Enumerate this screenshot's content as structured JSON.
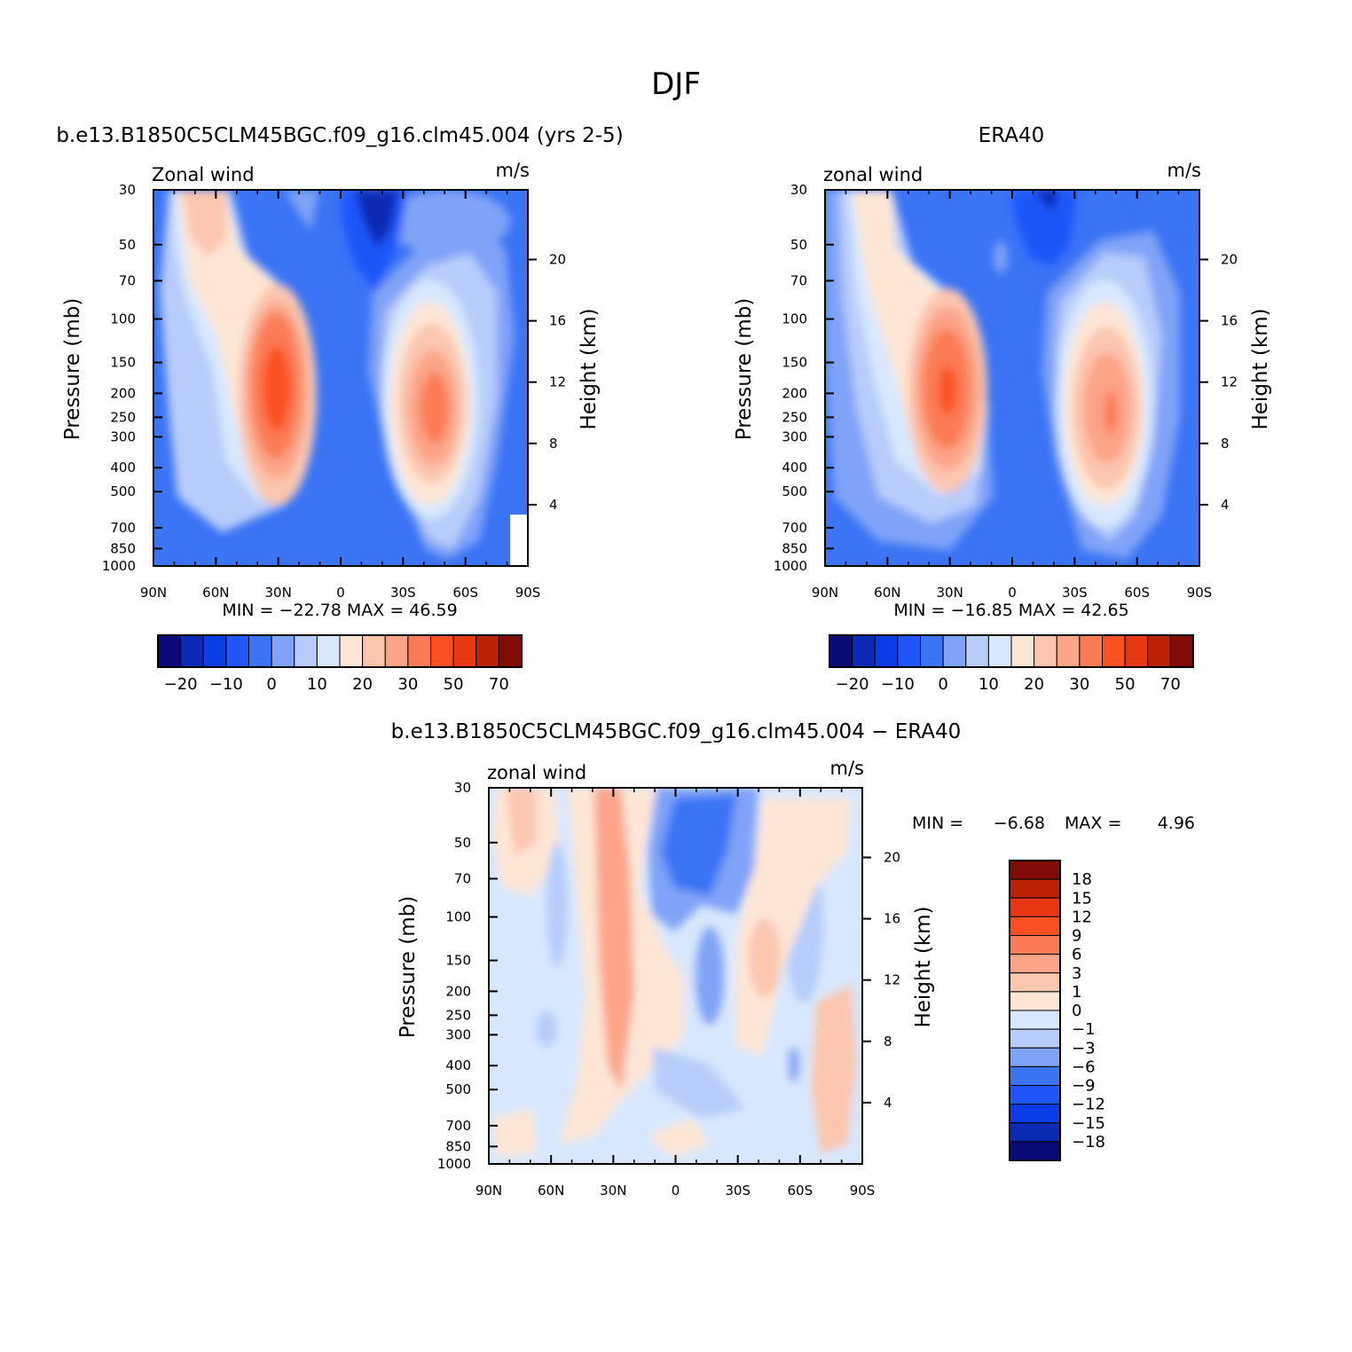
{
  "page": {
    "title": "DJF"
  },
  "chart_data": [
    {
      "type": "heatmap",
      "title": "b.e13.B1850C5CLM45BGC.f09_g16.clm45.004 (yrs 2-5)",
      "left_string": "Zonal wind",
      "right_string": "m/s",
      "ylabel": "Pressure (mb)",
      "ylabel_right": "Height (km)",
      "x_ticks": [
        "90N",
        "60N",
        "30N",
        "0",
        "30S",
        "60S",
        "90S"
      ],
      "y_ticks": [
        "30",
        "50",
        "70",
        "100",
        "150",
        "200",
        "250",
        "300",
        "400",
        "500",
        "700",
        "850",
        "1000"
      ],
      "y_ticks_right": [
        "20",
        "16",
        "12",
        "8",
        "4"
      ],
      "stats": "MIN =  −22.78   MAX =    46.59",
      "colorbar_labels": [
        "−20",
        "−10",
        "0",
        "10",
        "20",
        "30",
        "50",
        "70"
      ]
    },
    {
      "type": "heatmap",
      "title": "ERA40",
      "left_string": "zonal wind",
      "right_string": "m/s",
      "ylabel": "Pressure (mb)",
      "ylabel_right": "Height (km)",
      "x_ticks": [
        "90N",
        "60N",
        "30N",
        "0",
        "30S",
        "60S",
        "90S"
      ],
      "y_ticks": [
        "30",
        "50",
        "70",
        "100",
        "150",
        "200",
        "250",
        "300",
        "400",
        "500",
        "700",
        "850",
        "1000"
      ],
      "y_ticks_right": [
        "20",
        "16",
        "12",
        "8",
        "4"
      ],
      "stats": "MIN =  −16.85   MAX =    42.65",
      "colorbar_labels": [
        "−20",
        "−10",
        "0",
        "10",
        "20",
        "30",
        "50",
        "70"
      ]
    },
    {
      "type": "heatmap",
      "title": "b.e13.B1850C5CLM45BGC.f09_g16.clm45.004 − ERA40",
      "left_string": "zonal wind",
      "right_string": "m/s",
      "ylabel": "Pressure (mb)",
      "ylabel_right": "Height (km)",
      "x_ticks": [
        "90N",
        "60N",
        "30N",
        "0",
        "30S",
        "60S",
        "90S"
      ],
      "y_ticks": [
        "30",
        "50",
        "70",
        "100",
        "150",
        "200",
        "250",
        "300",
        "400",
        "500",
        "700",
        "850",
        "1000"
      ],
      "y_ticks_right": [
        "20",
        "16",
        "12",
        "8",
        "4"
      ],
      "stats_min_label": "MIN =",
      "stats_min": "−6.68",
      "stats_max_label": "MAX =",
      "stats_max": "4.96",
      "colorbar_labels": [
        "18",
        "15",
        "12",
        "9",
        "6",
        "3",
        "1",
        "0",
        "−1",
        "−3",
        "−6",
        "−9",
        "−12",
        "−15",
        "−18"
      ]
    }
  ],
  "colors": {
    "full": [
      "#0a0a78",
      "#0b2bb4",
      "#0a3de6",
      "#1f57fa",
      "#3b74f5",
      "#7fa3f7",
      "#b7ccfb",
      "#d8e7fd",
      "#fde6d6",
      "#fcc6ae",
      "#fba488",
      "#fb7b55",
      "#fb5122",
      "#e8380f",
      "#bc2206",
      "#820b05"
    ],
    "diff": [
      "#0a0a78",
      "#0b2bb4",
      "#0a3de6",
      "#1f57fa",
      "#3b74f5",
      "#7fa3f7",
      "#b7ccfb",
      "#d8e7fd",
      "#fde6d6",
      "#fcc6ae",
      "#fba488",
      "#fb7b55",
      "#fb5122",
      "#e8380f",
      "#bc2206",
      "#820b05"
    ]
  }
}
